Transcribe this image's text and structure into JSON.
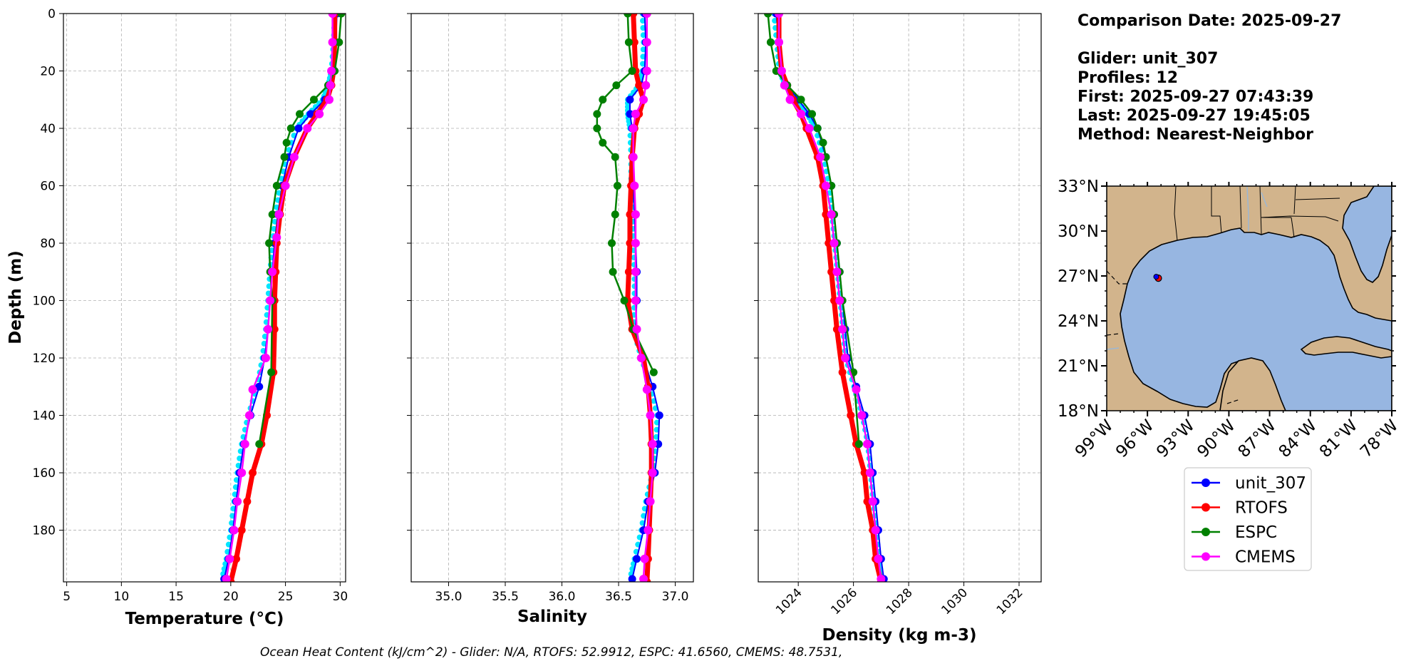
{
  "info": {
    "lines": [
      "Comparison Date: 2025-09-27",
      "",
      "Glider: unit_307",
      "Profiles: 12",
      "First: 2025-09-27 07:43:39",
      "Last: 2025-09-27 19:45:05",
      "Method: Nearest-Neighbor"
    ]
  },
  "footer": "Ocean Heat Content (kJ/cm^2) - Glider: N/A,  RTOFS: 52.9912,  ESPC: 41.6560,  CMEMS: 48.7531,",
  "colors": {
    "unit_307": "#0000ff",
    "unit_307_raw": "#00e5ff",
    "RTOFS": "#ff0000",
    "ESPC": "#008000",
    "CMEMS": "#ff00ff",
    "land": "#d2b48c",
    "ocean": "#97b6e1",
    "grid": "#b0b0b0"
  },
  "legend": [
    {
      "name": "unit_307",
      "color": "#0000ff"
    },
    {
      "name": "RTOFS",
      "color": "#ff0000"
    },
    {
      "name": "ESPC",
      "color": "#008000"
    },
    {
      "name": "CMEMS",
      "color": "#ff00ff"
    }
  ],
  "chart_data": [
    {
      "type": "line",
      "xlabel": "Temperature (°C)",
      "ylabel": "Depth (m)",
      "xlim": [
        4.7,
        30.5
      ],
      "ylim": [
        198,
        0
      ],
      "xticks": [
        "5",
        "10",
        "15",
        "20",
        "25",
        "30"
      ],
      "yticks": [
        "0",
        "20",
        "40",
        "60",
        "80",
        "100",
        "120",
        "140",
        "160",
        "180"
      ],
      "grid": true,
      "series": [
        {
          "name": "unit_307",
          "depth": [
            0,
            10,
            20,
            25,
            30,
            35,
            40,
            50,
            60,
            70,
            80,
            90,
            100,
            110,
            120,
            130,
            140,
            150,
            160,
            170,
            180,
            190,
            197
          ],
          "values": [
            29.7,
            29.6,
            29.4,
            29.1,
            28.6,
            27.3,
            26.2,
            25.3,
            24.7,
            24.3,
            24.0,
            23.8,
            23.6,
            23.4,
            23.1,
            22.6,
            21.8,
            21.2,
            20.8,
            20.5,
            20.2,
            19.8,
            19.4
          ]
        },
        {
          "name": "RTOFS",
          "depth": [
            0,
            10,
            20,
            25,
            30,
            35,
            40,
            50,
            60,
            70,
            80,
            90,
            100,
            110,
            125,
            140,
            150,
            160,
            170,
            180,
            190,
            198
          ],
          "values": [
            29.5,
            29.5,
            29.4,
            29.2,
            28.8,
            27.9,
            27.0,
            25.8,
            24.9,
            24.5,
            24.2,
            24.1,
            24.0,
            24.0,
            23.9,
            23.3,
            22.8,
            22.0,
            21.5,
            21.0,
            20.5,
            20.0
          ]
        },
        {
          "name": "ESPC",
          "depth": [
            0,
            10,
            20,
            25,
            30,
            35,
            40,
            45,
            50,
            60,
            70,
            80,
            90,
            100,
            125,
            150
          ],
          "values": [
            30.1,
            29.9,
            29.5,
            28.9,
            27.6,
            26.3,
            25.5,
            25.1,
            24.9,
            24.2,
            23.8,
            23.5,
            23.6,
            23.8,
            23.7,
            22.6
          ]
        },
        {
          "name": "CMEMS",
          "depth": [
            0,
            10,
            20,
            25,
            30,
            35,
            40,
            50,
            60,
            70,
            78,
            90,
            100,
            110,
            120,
            131,
            140,
            150,
            160,
            170,
            180,
            190,
            197
          ],
          "values": [
            29.3,
            29.3,
            29.2,
            29.1,
            29.0,
            28.1,
            27.0,
            25.8,
            25.0,
            24.4,
            24.2,
            23.8,
            23.6,
            23.4,
            23.2,
            22.0,
            21.7,
            21.3,
            21.0,
            20.6,
            20.3,
            19.9,
            19.6
          ]
        }
      ]
    },
    {
      "type": "line",
      "xlabel": "Salinity",
      "ylabel": "",
      "xlim": [
        34.67,
        37.16
      ],
      "ylim": [
        198,
        0
      ],
      "xticks": [
        "35.0",
        "35.5",
        "36.0",
        "36.5",
        "37.0"
      ],
      "grid": true,
      "series": [
        {
          "name": "unit_307",
          "depth": [
            0,
            10,
            20,
            25,
            30,
            35,
            40,
            50,
            60,
            70,
            80,
            90,
            100,
            110,
            120,
            130,
            140,
            150,
            160,
            170,
            180,
            190,
            197
          ],
          "values": [
            36.73,
            36.74,
            36.73,
            36.7,
            36.6,
            36.6,
            36.62,
            36.63,
            36.63,
            36.64,
            36.65,
            36.66,
            36.66,
            36.65,
            36.72,
            36.8,
            36.86,
            36.85,
            36.82,
            36.76,
            36.72,
            36.66,
            36.62
          ]
        },
        {
          "name": "RTOFS",
          "depth": [
            0,
            10,
            20,
            25,
            30,
            35,
            40,
            50,
            60,
            70,
            80,
            90,
            100,
            110,
            120,
            130,
            140,
            150,
            160,
            170,
            180,
            190,
            198
          ],
          "values": [
            36.63,
            36.64,
            36.65,
            36.68,
            36.72,
            36.68,
            36.64,
            36.62,
            36.61,
            36.6,
            36.6,
            36.59,
            36.58,
            36.62,
            36.72,
            36.76,
            36.78,
            36.79,
            36.79,
            36.78,
            36.77,
            36.76,
            36.75
          ]
        },
        {
          "name": "ESPC",
          "depth": [
            0,
            10,
            20,
            25,
            30,
            35,
            40,
            45,
            50,
            60,
            70,
            80,
            90,
            100,
            110,
            125
          ],
          "values": [
            36.58,
            36.59,
            36.62,
            36.48,
            36.36,
            36.31,
            36.31,
            36.36,
            36.47,
            36.49,
            36.47,
            36.44,
            36.45,
            36.55,
            36.63,
            36.81
          ]
        },
        {
          "name": "CMEMS",
          "depth": [
            0,
            10,
            20,
            25,
            30,
            35,
            40,
            50,
            60,
            70,
            80,
            90,
            100,
            110,
            120,
            131,
            140,
            150,
            160,
            170,
            180,
            190,
            197
          ],
          "values": [
            36.75,
            36.75,
            36.75,
            36.74,
            36.72,
            36.65,
            36.63,
            36.63,
            36.64,
            36.65,
            36.65,
            36.65,
            36.65,
            36.66,
            36.7,
            36.75,
            36.78,
            36.8,
            36.8,
            36.78,
            36.76,
            36.73,
            36.72
          ]
        }
      ]
    },
    {
      "type": "line",
      "xlabel": "Density (kg m-3)",
      "ylabel": "",
      "xlim": [
        1022.55,
        1032.8
      ],
      "ylim": [
        198,
        0
      ],
      "xticks": [
        "1024",
        "1026",
        "1028",
        "1030",
        "1032"
      ],
      "grid": true,
      "series": [
        {
          "name": "unit_307",
          "depth": [
            0,
            10,
            20,
            25,
            30,
            35,
            40,
            50,
            60,
            70,
            80,
            90,
            100,
            110,
            120,
            130,
            140,
            150,
            160,
            170,
            180,
            190,
            197
          ],
          "values": [
            1023.2,
            1023.3,
            1023.4,
            1023.6,
            1024.0,
            1024.4,
            1024.7,
            1025.0,
            1025.2,
            1025.3,
            1025.4,
            1025.5,
            1025.6,
            1025.7,
            1025.8,
            1026.1,
            1026.4,
            1026.6,
            1026.7,
            1026.8,
            1026.9,
            1027.0,
            1027.1
          ]
        },
        {
          "name": "RTOFS",
          "depth": [
            0,
            10,
            20,
            25,
            30,
            35,
            40,
            50,
            60,
            70,
            80,
            90,
            100,
            110,
            125,
            140,
            150,
            160,
            170,
            180,
            190,
            198
          ],
          "values": [
            1023.3,
            1023.3,
            1023.4,
            1023.6,
            1023.8,
            1024.1,
            1024.3,
            1024.7,
            1024.9,
            1025.0,
            1025.1,
            1025.2,
            1025.3,
            1025.4,
            1025.6,
            1025.9,
            1026.1,
            1026.4,
            1026.5,
            1026.7,
            1026.8,
            1027.0
          ]
        },
        {
          "name": "ESPC",
          "depth": [
            0,
            10,
            20,
            25,
            30,
            35,
            40,
            45,
            50,
            60,
            70,
            80,
            90,
            100,
            125,
            150
          ],
          "values": [
            1022.9,
            1023.0,
            1023.2,
            1023.6,
            1024.1,
            1024.5,
            1024.7,
            1024.9,
            1025.0,
            1025.2,
            1025.3,
            1025.4,
            1025.5,
            1025.6,
            1026.0,
            1026.2
          ]
        },
        {
          "name": "CMEMS",
          "depth": [
            0,
            10,
            20,
            25,
            30,
            35,
            40,
            50,
            60,
            70,
            80,
            90,
            100,
            110,
            120,
            131,
            140,
            150,
            160,
            170,
            180,
            190,
            197
          ],
          "values": [
            1023.3,
            1023.3,
            1023.4,
            1023.5,
            1023.7,
            1024.1,
            1024.4,
            1024.8,
            1025.0,
            1025.2,
            1025.3,
            1025.4,
            1025.5,
            1025.6,
            1025.7,
            1026.1,
            1026.3,
            1026.5,
            1026.6,
            1026.7,
            1026.8,
            1026.9,
            1027.0
          ]
        }
      ]
    },
    {
      "type": "map",
      "region": "Gulf of Mexico",
      "lon_range": [
        -99,
        -78
      ],
      "lat_range": [
        18,
        33
      ],
      "lon_ticks": [
        "99°W",
        "96°W",
        "93°W",
        "90°W",
        "87°W",
        "84°W",
        "81°W",
        "78°W"
      ],
      "lat_ticks": [
        "33°N",
        "30°N",
        "27°N",
        "24°N",
        "21°N",
        "18°N"
      ],
      "glider_position": {
        "lon": -95.3,
        "lat": 26.9
      }
    }
  ]
}
